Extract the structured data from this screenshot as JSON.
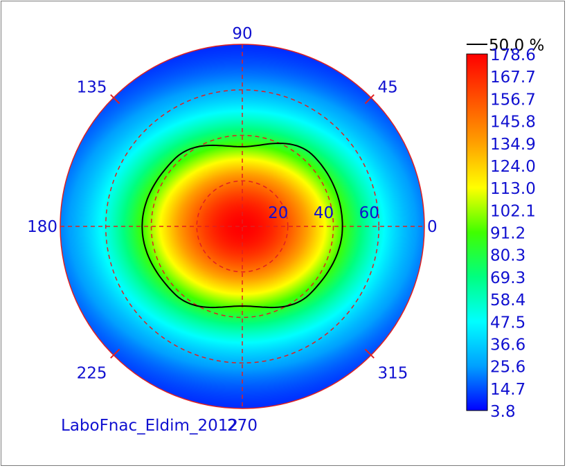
{
  "chart_data": {
    "type": "heatmap",
    "projection": "polar",
    "title": "",
    "source_label": "LaboFnac_Eldim_2012",
    "angle_labels": [
      "90",
      "45",
      "0",
      "315",
      "270",
      "225",
      "180",
      "135"
    ],
    "angles_deg": [
      90,
      45,
      0,
      315,
      270,
      225,
      180,
      135
    ],
    "radial_labels": [
      "20",
      "40",
      "60"
    ],
    "radial_values": [
      20,
      40,
      60
    ],
    "radial_max": 80,
    "contour": {
      "label": "50.0 %",
      "line_color": "#000000",
      "level": 89.3,
      "radius_by_angle": [
        {
          "angle": 0,
          "r": 44
        },
        {
          "angle": 45,
          "r": 44
        },
        {
          "angle": 90,
          "r": 35
        },
        {
          "angle": 135,
          "r": 42
        },
        {
          "angle": 180,
          "r": 44
        },
        {
          "angle": 225,
          "r": 42
        },
        {
          "angle": 270,
          "r": 35
        },
        {
          "angle": 315,
          "r": 42
        }
      ]
    },
    "colorbar": {
      "min": 3.8,
      "max": 178.6,
      "tick_labels": [
        "178.6",
        "167.7",
        "156.7",
        "145.8",
        "134.9",
        "124.0",
        "113.0",
        "102.1",
        "91.2",
        "80.3",
        "69.3",
        "58.4",
        "47.5",
        "36.6",
        "25.6",
        "14.7",
        "3.8"
      ],
      "colors": [
        "#0000ff",
        "#00a0ff",
        "#00ffff",
        "#00ff80",
        "#40ff00",
        "#ffff00",
        "#ffa000",
        "#ff5000",
        "#ff0000"
      ]
    },
    "field_model": {
      "peak": 178.6,
      "floor": 3.8,
      "half_width_horizontal_deg": 44,
      "half_width_vertical_deg": 36
    },
    "grid": true,
    "grid_color": "#e02020",
    "text_color": "#1010d0"
  }
}
